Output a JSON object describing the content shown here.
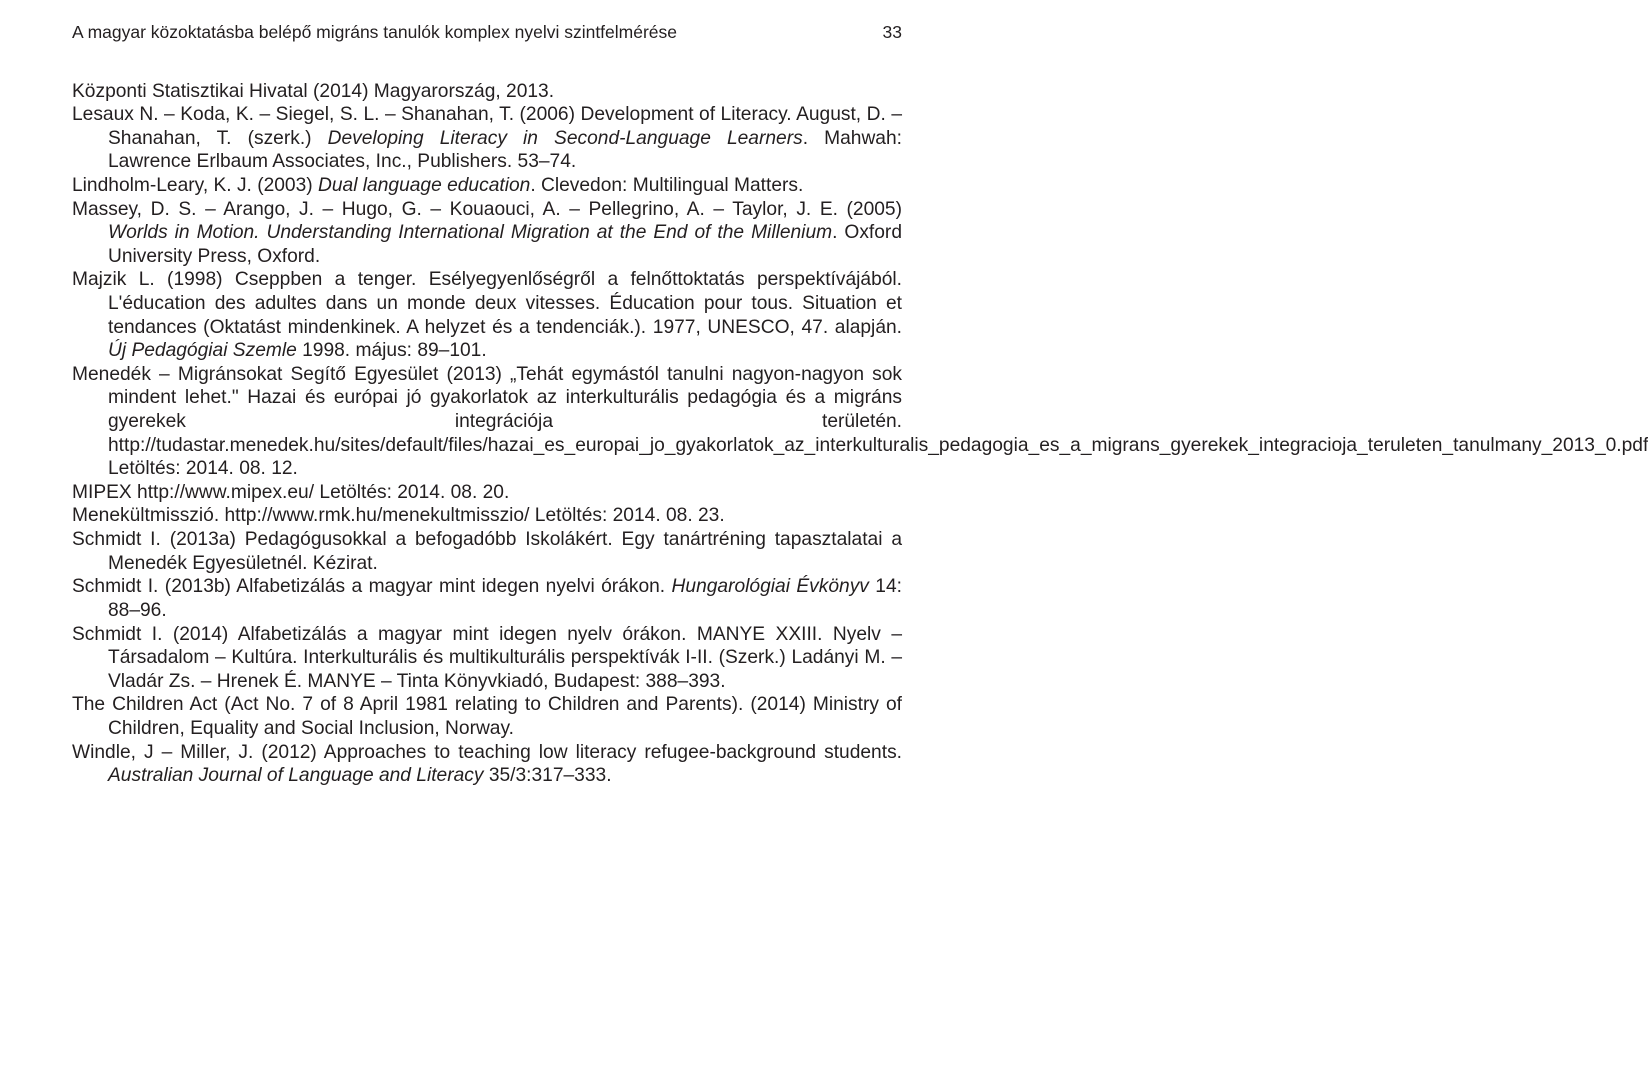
{
  "header": {
    "running_title": "A magyar közoktatásba belépő migráns tanulók komplex nyelvi szintfelmérése",
    "page_number": "33"
  },
  "references": {
    "r1": "Központi Statisztikai Hivatal (2014) Magyarország, 2013.",
    "r2_a": "Lesaux N. – Koda, K. – Siegel, S. L. – Shanahan, T. (2006) Development of Literacy. August, D. – Shanahan, T. (szerk.) ",
    "r2_i": "Developing Literacy in Second-Language Learners",
    "r2_b": ". Mahwah: Lawrence Erlbaum Associates, Inc., Publishers. 53–74.",
    "r3_a": "Lindholm-Leary, K. J. (2003) ",
    "r3_i": "Dual language education",
    "r3_b": ". Clevedon: Multilingual Matters.",
    "r4_a": "Massey, D. S. – Arango, J. – Hugo, G. – Kouaouci, A. – Pellegrino, A. – Taylor, J. E. (2005) ",
    "r4_i": "Worlds in Motion. Understanding International Migration at the End of the Millenium",
    "r4_b": ". Oxford University Press, Oxford.",
    "r5_a": "Majzik L. (1998) Cseppben a tenger. Esélyegyenlőségről a felnőttoktatás perspektívájából. L'éducation des adultes dans un monde deux vitesses. Éducation pour tous. Situation et tendances (Oktatást mindenkinek. A helyzet és a tendenciák.). 1977, UNESCO, 47. alapján. ",
    "r5_i": "Új Pedagógiai Szemle",
    "r5_b": " 1998. május: 89–101.",
    "r6": "Menedék – Migránsokat Segítő Egyesület (2013) „Tehát egymástól tanulni nagyon-nagyon sok mindent lehet.\" Hazai és európai jó gyakorlatok az interkulturális pedagógia és a migráns gyerekek integrációja területén. http://tudastar.menedek.hu/sites/default/files/hazai_es_europai_jo_gyakorlatok_az_interkulturalis_pedagogia_es_a_migrans_gyerekek_integracioja_teruleten_tanulmany_2013_0.pdf Letöltés: 2014. 08. 12.",
    "r7": "MIPEX http://www.mipex.eu/ Letöltés: 2014. 08. 20.",
    "r8": "Menekültmisszió. http://www.rmk.hu/menekultmisszio/ Letöltés: 2014. 08. 23.",
    "r9": "Schmidt I. (2013a) Pedagógusokkal a befogadóbb Iskolákért. Egy tanártréning tapasztalatai a Menedék Egyesületnél. Kézirat.",
    "r10_a": "Schmidt I. (2013b) Alfabetizálás a magyar mint idegen nyelvi órákon. ",
    "r10_i": "Hungarológiai Évkönyv",
    "r10_b": " 14: 88–96.",
    "r11": "Schmidt I. (2014) Alfabetizálás a magyar mint idegen nyelv órákon. MANYE XXIII. Nyelv – Társadalom – Kultúra. Interkulturális és multikulturális perspektívák I-II. (Szerk.) Ladányi M. – Vladár Zs. – Hrenek É. MANYE – Tinta Könyvkiadó, Budapest: 388–393.",
    "r12": "The Children Act (Act No. 7 of 8 April 1981 relating to Children and Parents). (2014) Ministry of Children, Equality and Social Inclusion, Norway.",
    "r13_a": "Windle, J – Miller, J. (2012) Approaches to teaching low literacy refugee-background students. ",
    "r13_i": "Australian Journal of Language and Literacy",
    "r13_b": " 35/3:317–333."
  }
}
